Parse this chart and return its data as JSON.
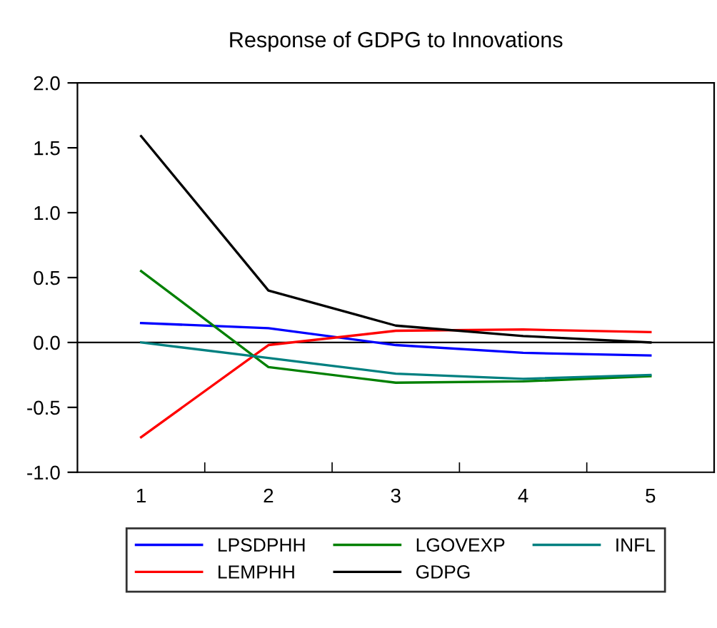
{
  "chart_data": {
    "type": "line",
    "title": "Response of GDPG to Innovations",
    "categories": [
      "1",
      "2",
      "3",
      "4",
      "5"
    ],
    "ylim": [
      -1,
      2
    ],
    "yticks": [
      {
        "value": -1,
        "label": "-1.0"
      },
      {
        "value": -0.5,
        "label": "-0.5"
      },
      {
        "value": 0,
        "label": "0.0"
      },
      {
        "value": 0.5,
        "label": "0.5"
      },
      {
        "value": 1,
        "label": "1.0"
      },
      {
        "value": 1.5,
        "label": "1.5"
      },
      {
        "value": 2,
        "label": "2.0"
      }
    ],
    "grid": false,
    "legend": "bottom",
    "marker": "none",
    "line_style": "solid",
    "ref_lines": [
      {
        "axis": "y",
        "value": 0,
        "color": "#000000"
      }
    ],
    "series": [
      {
        "name": "LPSDPHH",
        "color": "#0000ff",
        "values": [
          0.15,
          0.11,
          -0.02,
          -0.08,
          -0.1
        ]
      },
      {
        "name": "LEMPHH",
        "color": "#ff0000",
        "values": [
          -0.73,
          -0.02,
          0.09,
          0.1,
          0.08
        ]
      },
      {
        "name": "LGOVEXP",
        "color": "#008000",
        "values": [
          0.55,
          -0.19,
          -0.31,
          -0.3,
          -0.26
        ]
      },
      {
        "name": "GDPG",
        "color": "#000000",
        "values": [
          1.59,
          0.4,
          0.13,
          0.05,
          0.0
        ]
      },
      {
        "name": "INFL",
        "color": "#008080",
        "values": [
          0.0,
          -0.12,
          -0.24,
          -0.28,
          -0.25
        ]
      }
    ]
  }
}
